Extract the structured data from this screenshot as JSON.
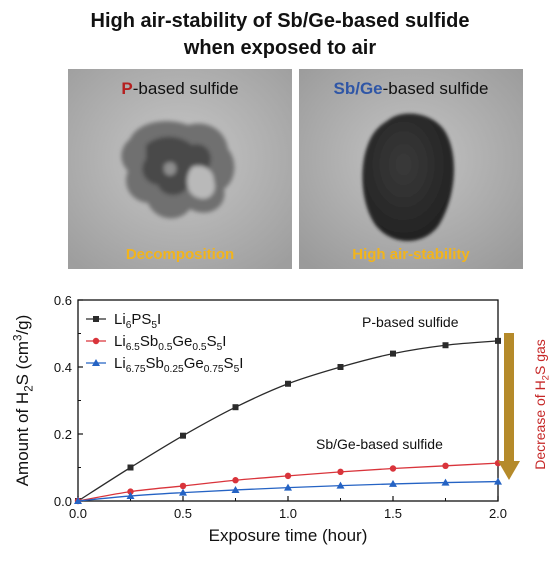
{
  "header": {
    "line1": "High air-stability of Sb/Ge-based sulfide",
    "line2": "when exposed to air"
  },
  "panels": [
    {
      "label_highlight": "P",
      "label_rest": "-based sulfide",
      "highlight_color": "#b51f1f",
      "caption": "Decomposition"
    },
    {
      "label_highlight": "Sb/Ge",
      "label_rest": "-based sulfide",
      "highlight_color": "#2f56a6",
      "caption": "High air-stability"
    }
  ],
  "colors": {
    "caption": "#f2b41c",
    "arrow": "#b58a2a",
    "arrow_label": "#c62828"
  },
  "chart_data": {
    "type": "line",
    "xlabel": "Exposure time (hour)",
    "ylabel_parts": [
      "Amount of H",
      "2",
      "S (cm",
      "3",
      "/g)"
    ],
    "xlim": [
      0.0,
      2.0
    ],
    "ylim": [
      0.0,
      0.6
    ],
    "xticks": [
      "0.0",
      "0.5",
      "1.0",
      "1.5",
      "2.0"
    ],
    "yticks": [
      "0.0",
      "0.2",
      "0.4",
      "0.6"
    ],
    "legend_position": "top-left",
    "grid": false,
    "series": [
      {
        "name": "Li6PS5I",
        "name_parts": [
          [
            "Li",
            ""
          ],
          [
            "6",
            "sub"
          ],
          [
            "PS",
            ""
          ],
          [
            "5",
            "sub"
          ],
          [
            "I",
            ""
          ]
        ],
        "color": "#2b2b2b",
        "marker": "square",
        "x": [
          0.0,
          0.25,
          0.5,
          0.75,
          1.0,
          1.25,
          1.5,
          1.75,
          2.0
        ],
        "y": [
          0.0,
          0.1,
          0.195,
          0.28,
          0.35,
          0.4,
          0.44,
          0.465,
          0.478
        ]
      },
      {
        "name": "Li6.5Sb0.5Ge0.5S5I",
        "name_parts": [
          [
            "Li",
            ""
          ],
          [
            "6.5",
            "sub"
          ],
          [
            "Sb",
            ""
          ],
          [
            "0.5",
            "sub"
          ],
          [
            "Ge",
            ""
          ],
          [
            "0.5",
            "sub"
          ],
          [
            "S",
            ""
          ],
          [
            "5",
            "sub"
          ],
          [
            "I",
            ""
          ]
        ],
        "color": "#d9343b",
        "marker": "circle",
        "x": [
          0.0,
          0.25,
          0.5,
          0.75,
          1.0,
          1.25,
          1.5,
          1.75,
          2.0
        ],
        "y": [
          0.0,
          0.028,
          0.045,
          0.062,
          0.075,
          0.087,
          0.097,
          0.105,
          0.113
        ]
      },
      {
        "name": "Li6.75Sb0.25Ge0.75S5I",
        "name_parts": [
          [
            "Li",
            ""
          ],
          [
            "6.75",
            "sub"
          ],
          [
            "Sb",
            ""
          ],
          [
            "0.25",
            "sub"
          ],
          [
            "Ge",
            ""
          ],
          [
            "0.75",
            "sub"
          ],
          [
            "S",
            ""
          ],
          [
            "5",
            "sub"
          ],
          [
            "I",
            ""
          ]
        ],
        "color": "#2563c4",
        "marker": "triangle",
        "x": [
          0.0,
          0.25,
          0.5,
          0.75,
          1.0,
          1.25,
          1.5,
          1.75,
          2.0
        ],
        "y": [
          0.0,
          0.015,
          0.025,
          0.033,
          0.04,
          0.046,
          0.051,
          0.055,
          0.058
        ]
      }
    ],
    "annotations": {
      "p_label": "P-based sulfide",
      "sbge_label": "Sb/Ge-based sulfide",
      "arrow_label_parts": [
        [
          "Decrease of H",
          ""
        ],
        [
          "2",
          "sub"
        ],
        [
          "S gas",
          ""
        ]
      ]
    }
  }
}
